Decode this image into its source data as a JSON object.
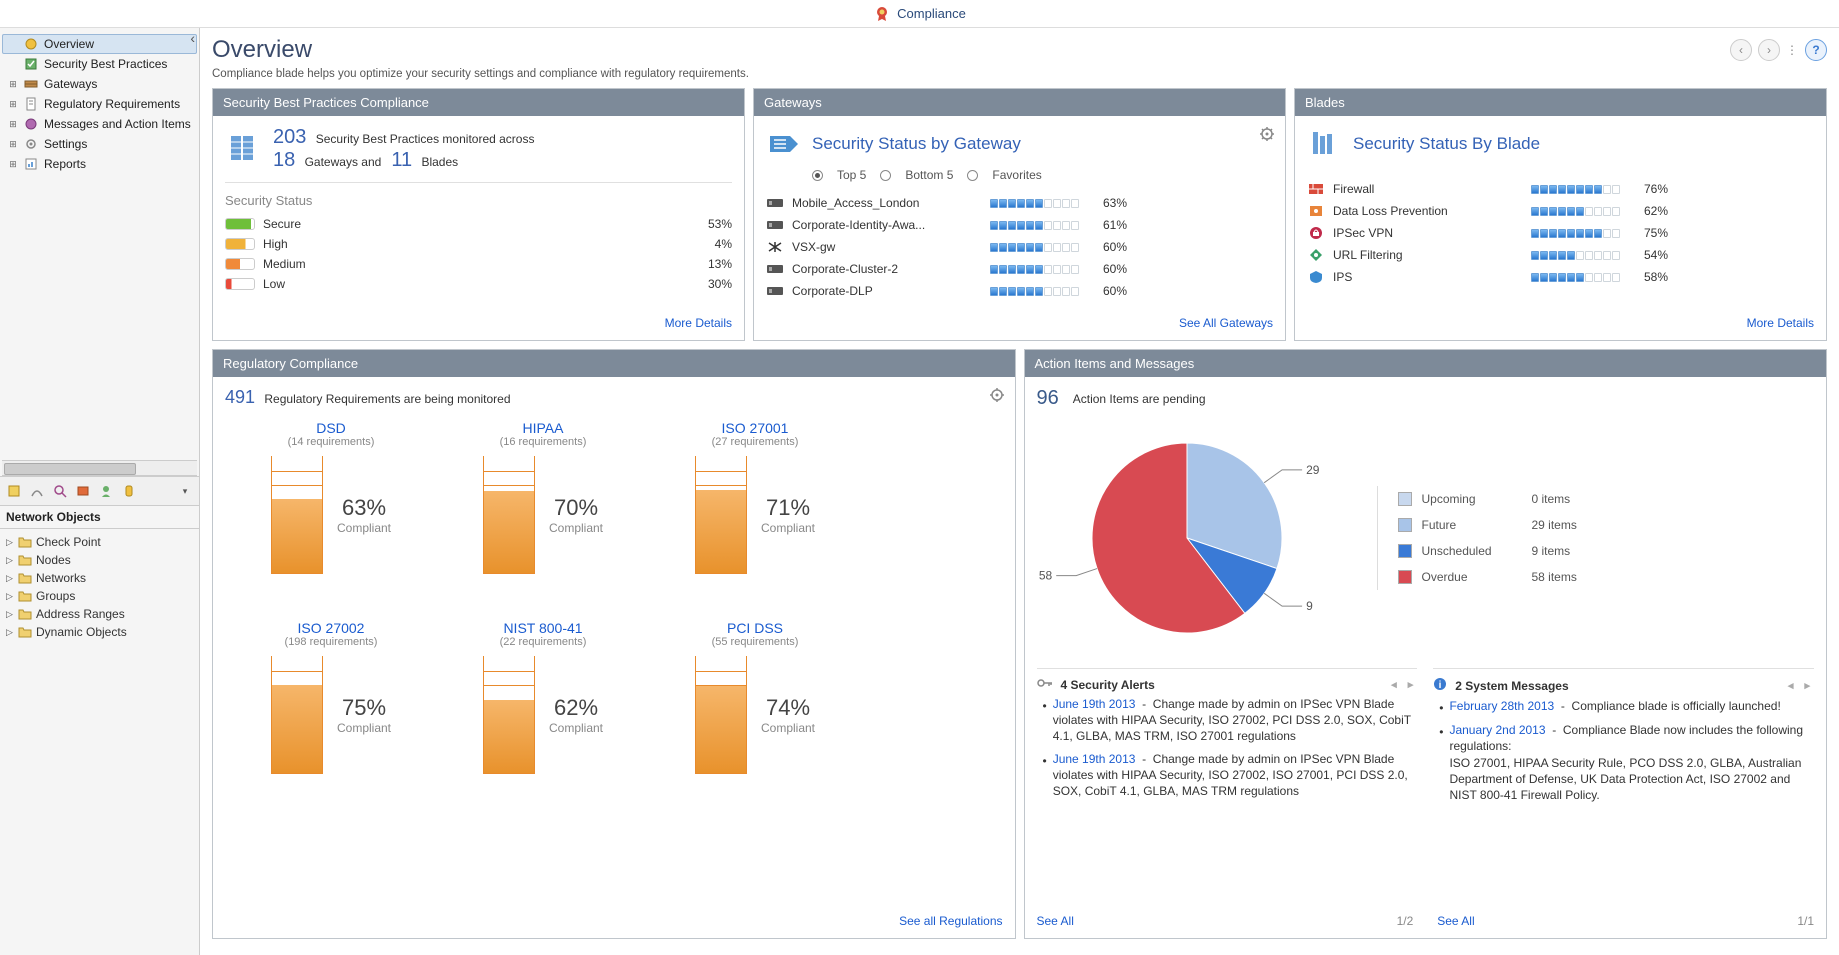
{
  "app": {
    "title": "Compliance"
  },
  "sidebar": {
    "nav": [
      {
        "label": "Overview",
        "icon": "overview",
        "selected": true
      },
      {
        "label": "Security Best Practices",
        "icon": "bestpractices",
        "expandable": false
      },
      {
        "label": "Gateways",
        "icon": "gateways",
        "expandable": true
      },
      {
        "label": "Regulatory Requirements",
        "icon": "regulatory",
        "expandable": true
      },
      {
        "label": "Messages and Action Items",
        "icon": "messages",
        "expandable": true
      },
      {
        "label": "Settings",
        "icon": "settings",
        "expandable": true
      },
      {
        "label": "Reports",
        "icon": "reports",
        "expandable": true
      }
    ],
    "network_objects": {
      "title": "Network Objects",
      "items": [
        {
          "label": "Check Point",
          "icon": "folder"
        },
        {
          "label": "Nodes",
          "icon": "folder"
        },
        {
          "label": "Networks",
          "icon": "folder"
        },
        {
          "label": "Groups",
          "icon": "folder"
        },
        {
          "label": "Address Ranges",
          "icon": "folder"
        },
        {
          "label": "Dynamic Objects",
          "icon": "folder"
        }
      ]
    }
  },
  "page": {
    "title": "Overview",
    "subtitle": "Compliance blade helps you optimize your security settings and compliance with regulatory requirements."
  },
  "panels": {
    "best_practices": {
      "header": "Security Best Practices Compliance",
      "count_practices": "203",
      "count_practices_label": "Security Best Practices monitored across",
      "count_gateways": "18",
      "count_gateways_label": "Gateways and",
      "count_blades": "11",
      "count_blades_label": "Blades",
      "security_status_label": "Security Status",
      "statuses": [
        {
          "name": "Secure",
          "pct": "53%",
          "color": "#6fbf3a"
        },
        {
          "name": "High",
          "pct": "4%",
          "color": "#f0b23a"
        },
        {
          "name": "Medium",
          "pct": "13%",
          "color": "#f08a3a"
        },
        {
          "name": "Low",
          "pct": "30%",
          "color": "#e84a3a"
        }
      ],
      "link": "More Details"
    },
    "gateways": {
      "header": "Gateways",
      "title": "Security Status by Gateway",
      "filters": {
        "top5": "Top 5",
        "bottom5": "Bottom 5",
        "favorites": "Favorites",
        "selected": "top5"
      },
      "rows": [
        {
          "name": "Mobile_Access_London",
          "pct": 63
        },
        {
          "name": "Corporate-Identity-Awa...",
          "pct": 61
        },
        {
          "name": "VSX-gw",
          "pct": 60
        },
        {
          "name": "Corporate-Cluster-2",
          "pct": 60
        },
        {
          "name": "Corporate-DLP",
          "pct": 60
        }
      ],
      "link": "See All Gateways"
    },
    "blades": {
      "header": "Blades",
      "title": "Security Status By Blade",
      "rows": [
        {
          "name": "Firewall",
          "pct": 76,
          "icon": "firewall",
          "color": "#d94a3a"
        },
        {
          "name": "Data Loss Prevention",
          "pct": 62,
          "icon": "dlp",
          "color": "#e8843a"
        },
        {
          "name": "IPSec VPN",
          "pct": 75,
          "icon": "vpn",
          "color": "#c02a4a"
        },
        {
          "name": "URL Filtering",
          "pct": 54,
          "icon": "url",
          "color": "#3aa06a"
        },
        {
          "name": "IPS",
          "pct": 58,
          "icon": "ips",
          "color": "#3a8ad0"
        }
      ],
      "link": "More Details"
    },
    "regulatory": {
      "header": "Regulatory Compliance",
      "count": "491",
      "count_label": "Regulatory Requirements are being monitored",
      "items": [
        {
          "name": "DSD",
          "sub": "(14 requirements)",
          "pct": 63
        },
        {
          "name": "HIPAA",
          "sub": "(16 requirements)",
          "pct": 70
        },
        {
          "name": "ISO 27001",
          "sub": "(27 requirements)",
          "pct": 71
        },
        {
          "name": "ISO 27002",
          "sub": "(198 requirements)",
          "pct": 75
        },
        {
          "name": "NIST 800-41",
          "sub": "(22 requirements)",
          "pct": 62
        },
        {
          "name": "PCI DSS",
          "sub": "(55 requirements)",
          "pct": 74
        }
      ],
      "compliant_label": "Compliant",
      "gauge": {
        "rungs": 8,
        "border_color": "#e88a2c",
        "fill_top": "#f6b66a",
        "fill_bottom": "#e8922c"
      },
      "link": "See all Regulations"
    },
    "actions": {
      "header": "Action Items and Messages",
      "count": "96",
      "count_label": "Action Items are pending",
      "pie": {
        "slices": [
          {
            "name": "Upcoming",
            "value": 0,
            "color": "#c8d8ee"
          },
          {
            "name": "Future",
            "value": 29,
            "color": "#a8c4e8"
          },
          {
            "name": "Unscheduled",
            "value": 9,
            "color": "#3a7ad6"
          },
          {
            "name": "Overdue",
            "value": 58,
            "color": "#d84a52"
          }
        ],
        "callouts": {
          "future": "29",
          "unscheduled": "9",
          "overdue": "58"
        }
      },
      "legend_items": "0 items",
      "legend_items_future": "29 items",
      "legend_items_unsched": "9 items",
      "legend_items_overdue": "58 items",
      "legend_labels": {
        "upcoming": "Upcoming",
        "future": "Future",
        "unscheduled": "Unscheduled",
        "overdue": "Overdue"
      },
      "alerts": {
        "title": "4 Security Alerts",
        "items": [
          {
            "date": "June 19th 2013",
            "text": "Change made by admin on IPSec VPN Blade violates with HIPAA Security, ISO 27002, PCI DSS 2.0, SOX, CobiT 4.1, GLBA, MAS TRM, ISO 27001 regulations"
          },
          {
            "date": "June 19th 2013",
            "text": "Change made by admin on IPSec VPN Blade violates with HIPAA Security, ISO 27002, ISO 27001, PCI DSS 2.0, SOX, CobiT 4.1, GLBA, MAS TRM regulations"
          }
        ],
        "see_all": "See All",
        "pager": "1/2"
      },
      "messages": {
        "title": "2 System Messages",
        "items": [
          {
            "date": "February 28th 2013",
            "text": "Compliance blade is officially launched!"
          },
          {
            "date": "January 2nd 2013",
            "text": "Compliance Blade now includes the following regulations:\nISO 27001, HIPAA Security Rule, PCO DSS 2.0, GLBA, Australian Department of Defense, UK Data Protection Act, ISO 27002 and NIST 800-41 Firewall Policy."
          }
        ],
        "see_all": "See All",
        "pager": "1/1"
      }
    }
  }
}
